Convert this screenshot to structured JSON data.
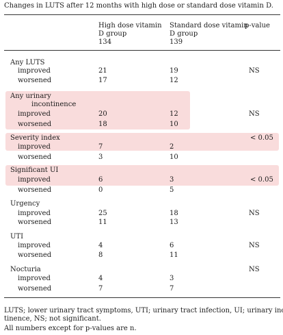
{
  "caption": "Changes in LUTS after 12 months with high dose or standard dose vitamin D.",
  "headers": {
    "col1_line1": "High dose vitamin",
    "col1_line2": "D group",
    "col1_n": "134",
    "col2_line1": "Standard dose vitamin",
    "col2_line2": "D group",
    "col2_n": "139",
    "col3": "p-value"
  },
  "groups": [
    {
      "label": "Any LUTS",
      "improved": {
        "label": "improved",
        "high": "21",
        "standard": "19",
        "p": "NS"
      },
      "worsened": {
        "label": "worsened",
        "high": "17",
        "standard": "12",
        "p": ""
      }
    },
    {
      "label_line1": "Any urinary",
      "label_line2": "incontinence",
      "improved": {
        "label": "improved",
        "high": "20",
        "standard": "12",
        "p": "NS"
      },
      "worsened": {
        "label": "worsened",
        "high": "18",
        "standard": "10",
        "p": ""
      }
    },
    {
      "label": "Severity index",
      "p_on_label": "< 0.05",
      "improved": {
        "label": "improved",
        "high": "7",
        "standard": "2",
        "p": ""
      },
      "worsened": {
        "label": "worsened",
        "high": "3",
        "standard": "10",
        "p": ""
      }
    },
    {
      "label": "Significant UI",
      "improved": {
        "label": "improved",
        "high": "6",
        "standard": "3",
        "p": "< 0.05"
      },
      "worsened": {
        "label": "worsened",
        "high": "0",
        "standard": "5",
        "p": ""
      }
    },
    {
      "label": "Urgency",
      "improved": {
        "label": "improved",
        "high": "25",
        "standard": "18",
        "p": "NS"
      },
      "worsened": {
        "label": "worsened",
        "high": "11",
        "standard": "13",
        "p": ""
      }
    },
    {
      "label": "UTI",
      "improved": {
        "label": "improved",
        "high": "4",
        "standard": "6",
        "p": "NS"
      },
      "worsened": {
        "label": "worsened",
        "high": "8",
        "standard": "11",
        "p": ""
      }
    },
    {
      "label": "Nocturia",
      "p_on_label": "NS",
      "improved": {
        "label": "improved",
        "high": "4",
        "standard": "3",
        "p": ""
      },
      "worsened": {
        "label": "worsened",
        "high": "7",
        "standard": "7",
        "p": ""
      }
    }
  ],
  "footnote_line1": "LUTS; lower urinary tract symptoms, UTI; urinary tract infection, UI; urinary incon-",
  "footnote_line2": "tinence, NS; not significant.",
  "footnote_line3": "All numbers except for p-values are n.",
  "colors": {
    "highlight": "#f9dcdc",
    "rule": "#333333",
    "text": "#1a1a1a"
  }
}
